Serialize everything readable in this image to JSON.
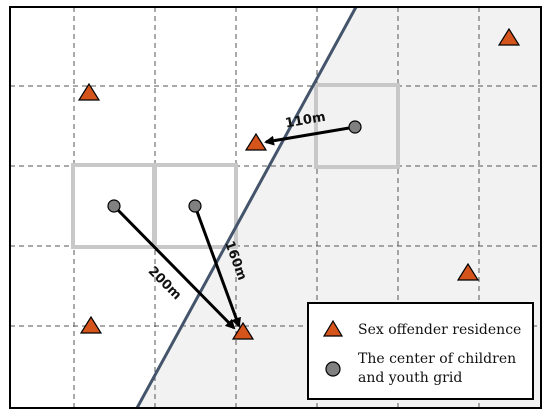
{
  "distances": {
    "d1": "110m",
    "d2": "160m",
    "d3": "200m"
  },
  "legend": {
    "offender": "Sex offender residence",
    "center_line1": "The center of children",
    "center_line2": "and youth grid"
  },
  "colors": {
    "offender_fill": "#d4541c",
    "grid_center_fill": "#808080",
    "boundary_line": "#44546a",
    "shaded_region": "#f2f2f2",
    "highlight_cell": "#c8c8c8"
  },
  "icons": {
    "offender": "orange-triangle-icon",
    "grid_center": "gray-circle-icon"
  }
}
